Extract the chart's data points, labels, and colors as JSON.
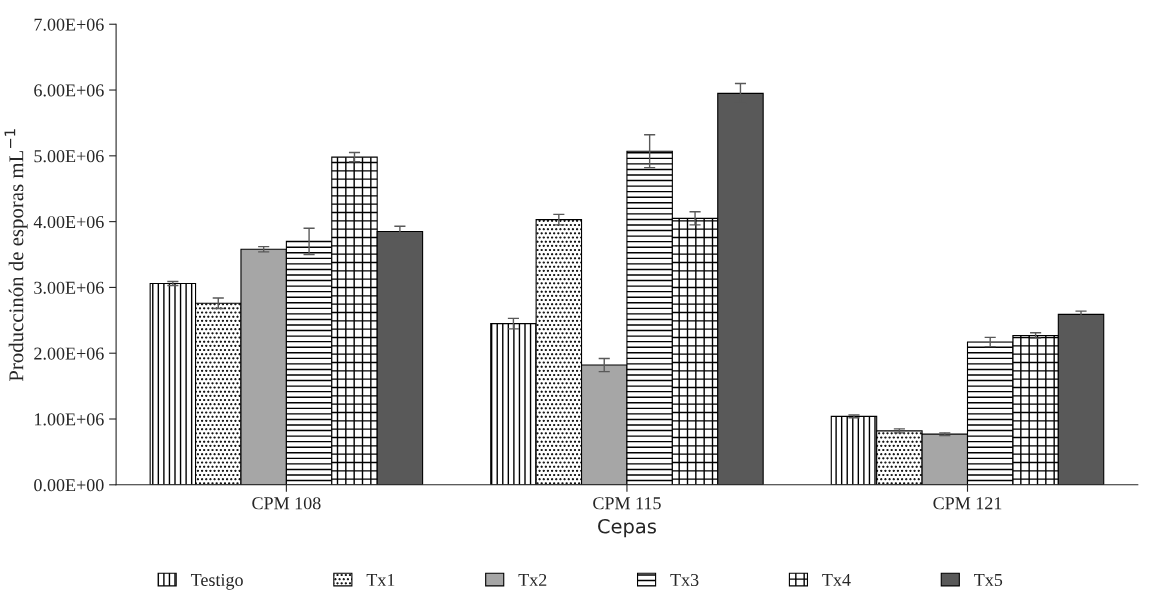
{
  "chart_data": {
    "type": "bar",
    "xlabel": "Cepas",
    "ylabel": "Produccinón de esporas mL$^{−1}$",
    "categories": [
      "CPM 108",
      "CPM 115",
      "CPM 121"
    ],
    "series": [
      {
        "name": "Testigo",
        "color": "#000000",
        "values": [
          3060000,
          2450000,
          1040000
        ],
        "errors": [
          30000,
          80000,
          20000
        ]
      },
      {
        "name": "Tx1",
        "color": "#000000",
        "values": [
          2760000,
          4030000,
          820000
        ],
        "errors": [
          80000,
          80000,
          30000
        ]
      },
      {
        "name": "Tx2",
        "color": "#a6a6a6",
        "values": [
          3580000,
          1820000,
          770000
        ],
        "errors": [
          40000,
          100000,
          20000
        ]
      },
      {
        "name": "Tx3",
        "color": "#000000",
        "values": [
          3700000,
          5070000,
          2170000
        ],
        "errors": [
          200000,
          250000,
          70000
        ]
      },
      {
        "name": "Tx4",
        "color": "#000000",
        "values": [
          4980000,
          4050000,
          2270000
        ],
        "errors": [
          70000,
          100000,
          40000
        ]
      },
      {
        "name": "Tx5",
        "color": "#595959",
        "values": [
          3850000,
          5950000,
          2590000
        ],
        "errors": [
          80000,
          150000,
          50000
        ]
      }
    ],
    "ylim": [
      0,
      7000000
    ],
    "yticks": [
      {
        "value": 0,
        "label": "0.00E+00"
      },
      {
        "value": 1000000,
        "label": "1.00E+06"
      },
      {
        "value": 2000000,
        "label": "2.00E+06"
      },
      {
        "value": 3000000,
        "label": "3.00E+06"
      },
      {
        "value": 4000000,
        "label": "4.00E+06"
      },
      {
        "value": 5000000,
        "label": "5.00E+06"
      },
      {
        "value": 6000000,
        "label": "6.00E+06"
      },
      {
        "value": 7000000,
        "label": "7.00E+06"
      }
    ],
    "grid": false,
    "legend": "bottom"
  }
}
